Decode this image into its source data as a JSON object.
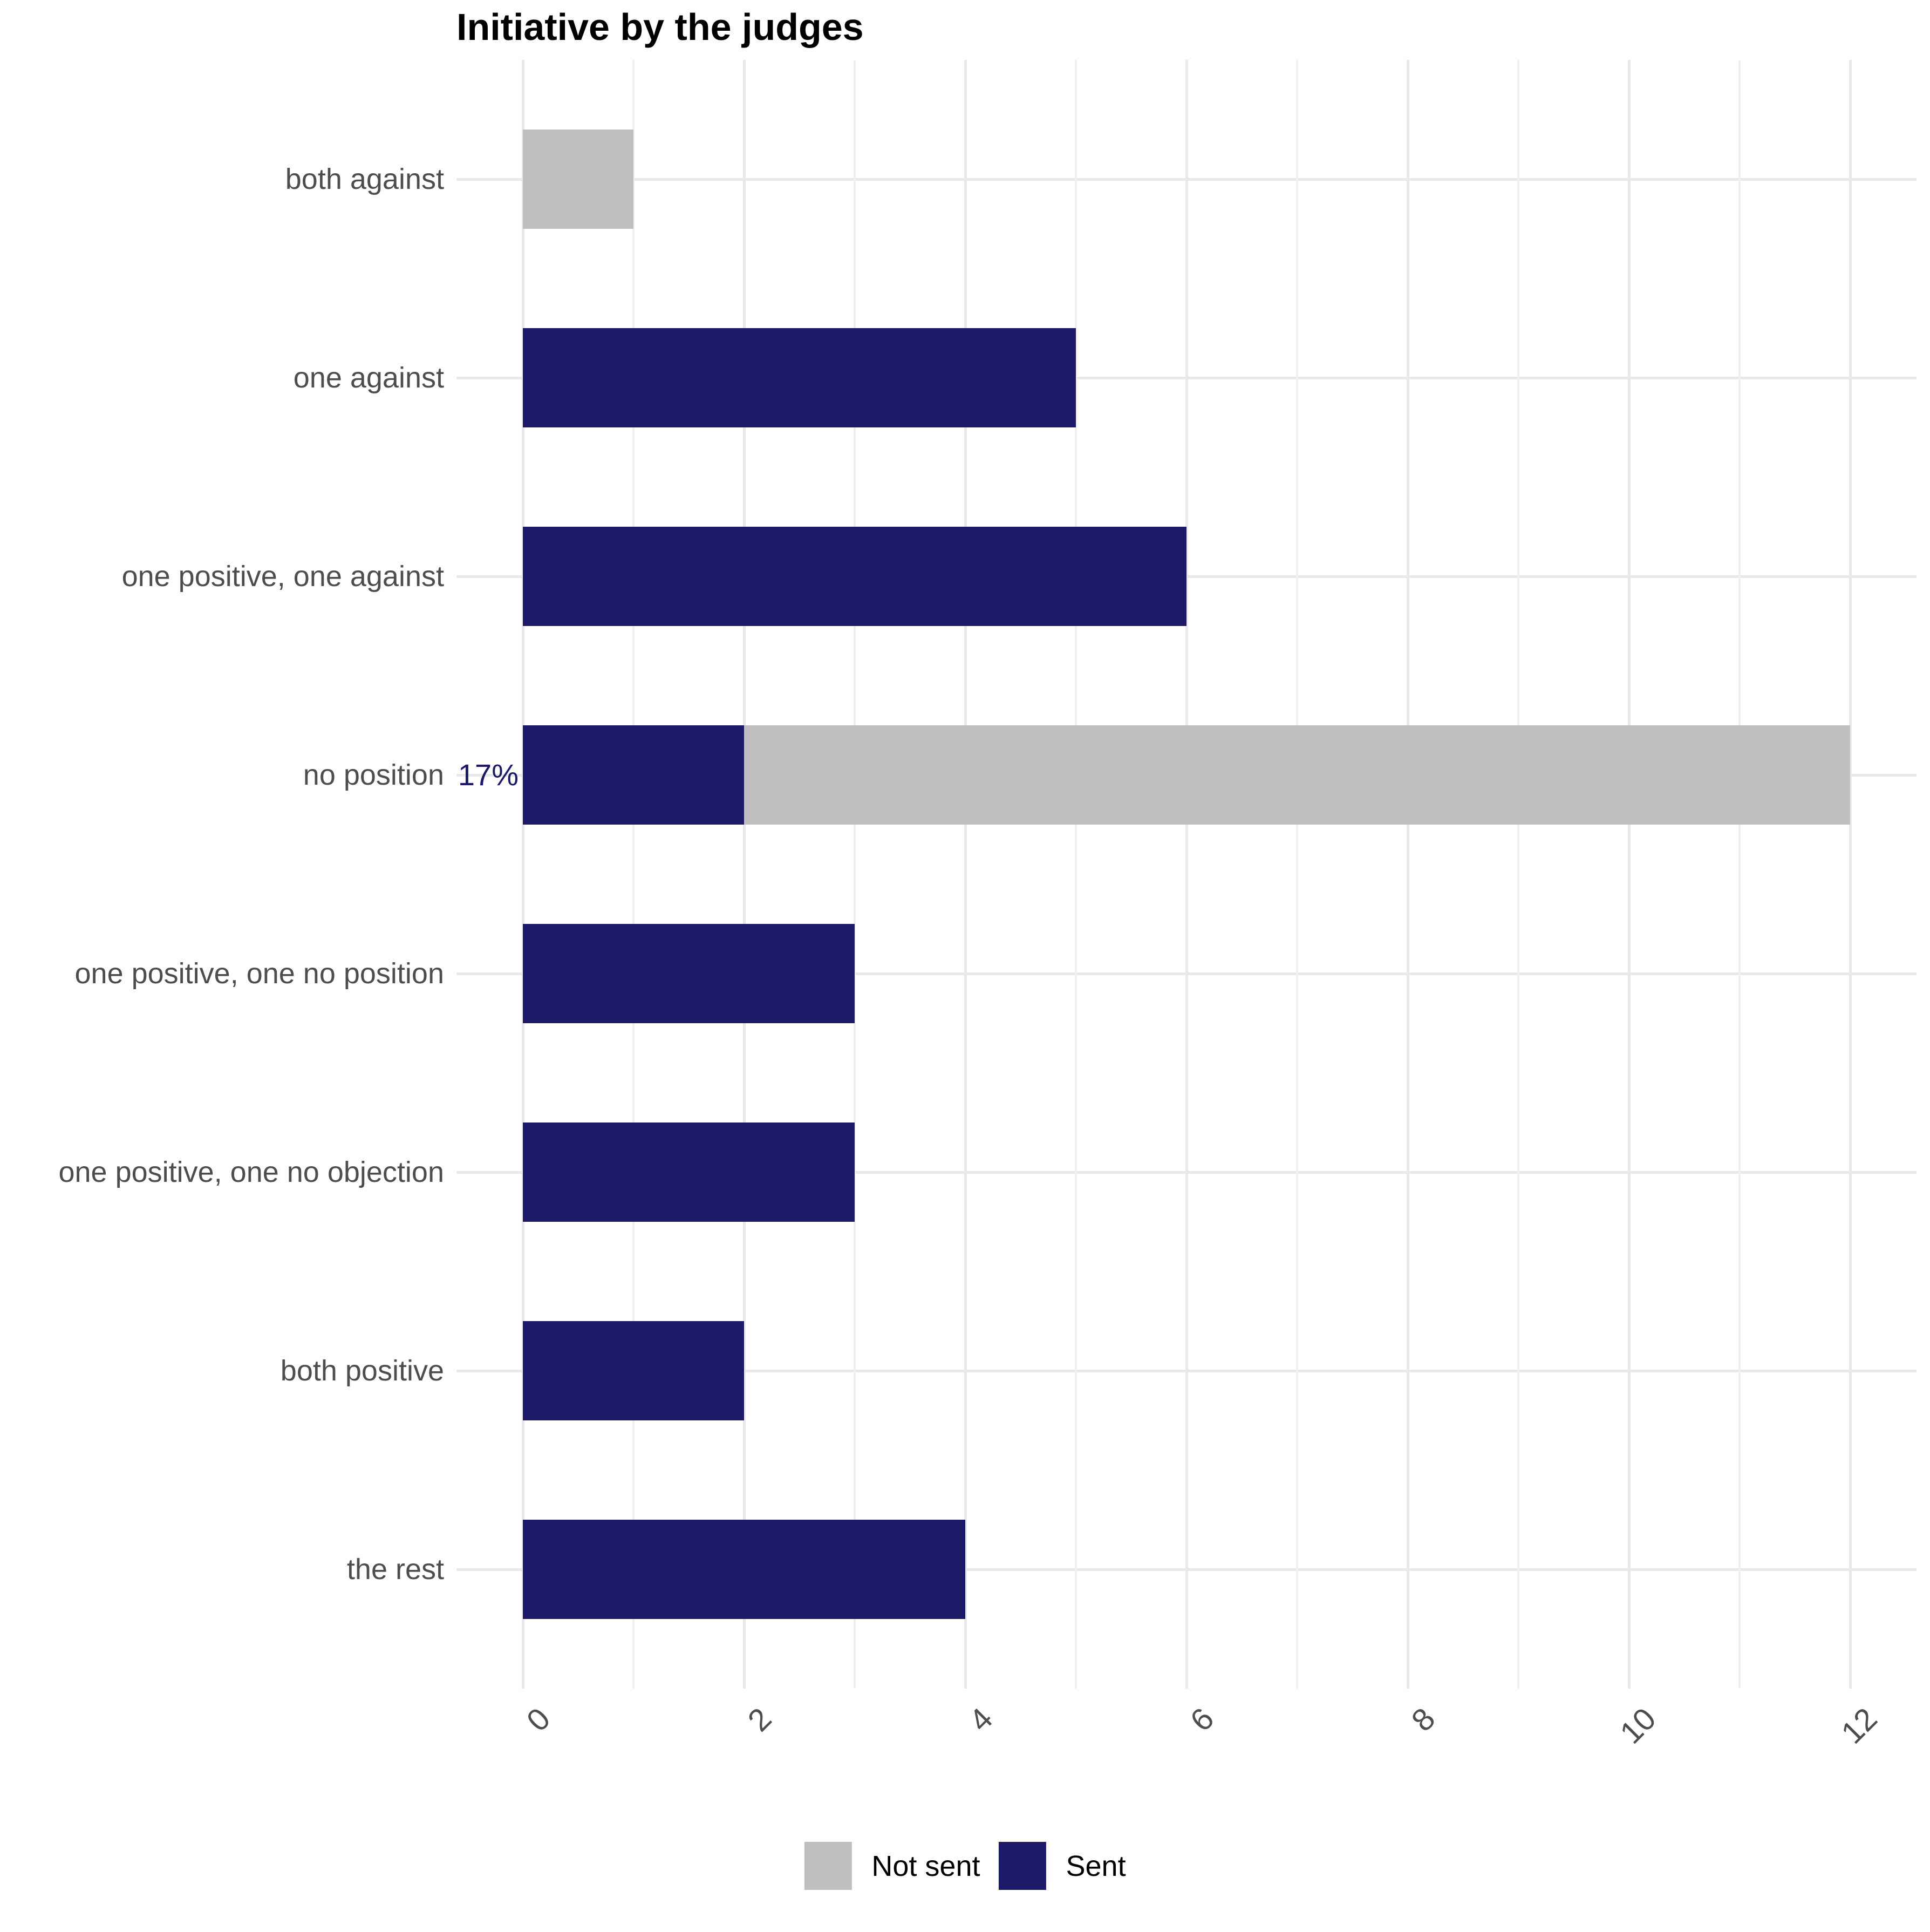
{
  "chart_data": {
    "type": "bar",
    "orientation": "horizontal",
    "stacked": true,
    "title": "Initiative by the judges",
    "categories": [
      "both against",
      "one against",
      "one positive, one against",
      "no position",
      "one positive, one no position",
      "one positive, one no objection",
      "both positive",
      "the rest"
    ],
    "series": [
      {
        "name": "Sent",
        "color": "#1c1969",
        "values": [
          0,
          5,
          6,
          2,
          3,
          3,
          2,
          4
        ]
      },
      {
        "name": "Not sent",
        "color": "#bfbfbf",
        "values": [
          1,
          0,
          0,
          10,
          0,
          0,
          0,
          0
        ]
      }
    ],
    "x_axis": {
      "tick_labels": [
        "0",
        "2",
        "4",
        "6",
        "8",
        "10",
        "12"
      ],
      "tick_values": [
        0,
        2,
        4,
        6,
        8,
        10,
        12
      ],
      "minor_values": [
        1,
        3,
        5,
        7,
        9,
        11
      ],
      "range": [
        -0.6,
        12.6
      ],
      "grid": true
    },
    "annotations": [
      {
        "text": "17%",
        "category": "no position",
        "color": "#1c1969",
        "position": "left-of-axis"
      }
    ],
    "legend": {
      "position": "bottom",
      "items": [
        {
          "label": "Not sent",
          "color": "#bfbfbf"
        },
        {
          "label": "Sent",
          "color": "#1c1969"
        }
      ]
    }
  },
  "colors": {
    "sent": "#1c1969",
    "not_sent": "#bfbfbf",
    "grid_major": "#e9e9e9",
    "grid_minor": "#f1f1f1",
    "axis_text": "#4d4d4d",
    "title_text": "#000000",
    "background": "#ffffff"
  }
}
